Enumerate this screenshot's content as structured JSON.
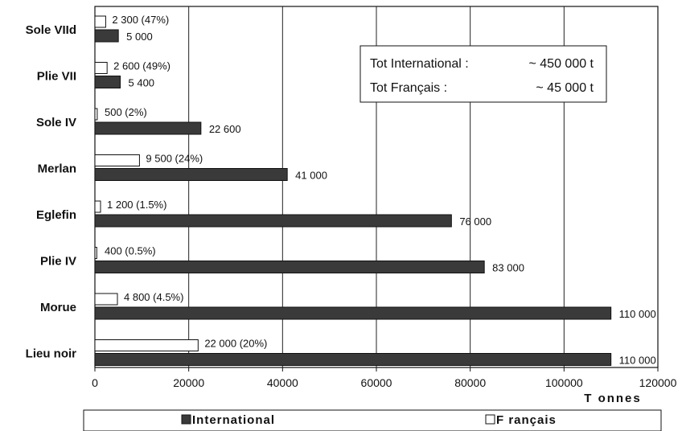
{
  "chart_data": {
    "type": "bar",
    "orientation": "horizontal",
    "categories": [
      "Sole VIId",
      "Plie VII",
      "Sole IV",
      "Merlan",
      "Eglefin",
      "Plie IV",
      "Morue",
      "Lieu noir"
    ],
    "series": [
      {
        "name": "Français",
        "color": "#ffffff",
        "values": [
          2300,
          2600,
          500,
          9500,
          1200,
          400,
          4800,
          22000
        ],
        "labels": [
          "2 300 (47%)",
          "2 600 (49%)",
          "500 (2%)",
          "9 500 (24%)",
          "1 200 (1.5%)",
          "400 (0.5%)",
          "4 800 (4.5%)",
          "22 000 (20%)"
        ]
      },
      {
        "name": "International",
        "color": "#3a3a3a",
        "values": [
          5000,
          5400,
          22600,
          41000,
          76000,
          83000,
          110000,
          110000
        ],
        "labels": [
          "5 000",
          "5 400",
          "22 600",
          "41 000",
          "76 000",
          "83 000",
          "110 000",
          "110 000"
        ]
      }
    ],
    "xlim": [
      0,
      120000
    ],
    "xticks": [
      0,
      20000,
      40000,
      60000,
      80000,
      100000,
      120000
    ],
    "xtick_labels": [
      "0",
      "20000",
      "40000",
      "60000",
      "80000",
      "100000",
      "120000"
    ],
    "xlabel": "T onnes",
    "ylabel": "",
    "title": "",
    "grid": "vertical",
    "legend": {
      "position": "bottom",
      "entries": [
        "International",
        "F rançais"
      ]
    },
    "annotation": {
      "line1_label": "Tot International :",
      "line1_value": "~ 450 000 t",
      "line2_label": "Tot Français :",
      "line2_value": "~ 45 000 t"
    }
  }
}
